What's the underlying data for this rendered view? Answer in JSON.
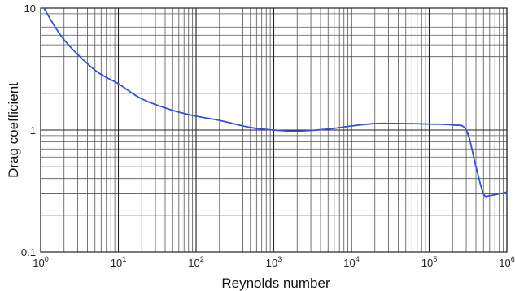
{
  "chart_data": {
    "type": "line",
    "title": "",
    "xlabel": "Reynolds number",
    "ylabel": "Drag coefficient",
    "x_scale": "log",
    "y_scale": "log",
    "xlim": [
      1,
      1000000
    ],
    "ylim": [
      0.1,
      10
    ],
    "grid": true,
    "legend": "none",
    "x_ticks": [
      {
        "base": "10",
        "exp": "0"
      },
      {
        "base": "10",
        "exp": "1"
      },
      {
        "base": "10",
        "exp": "2"
      },
      {
        "base": "10",
        "exp": "3"
      },
      {
        "base": "10",
        "exp": "4"
      },
      {
        "base": "10",
        "exp": "5"
      },
      {
        "base": "10",
        "exp": "6"
      }
    ],
    "y_ticks": [
      "0.1",
      "1",
      "10"
    ],
    "series": [
      {
        "color": "#3a4fd6",
        "x": [
          1.1,
          2,
          5,
          10,
          20,
          50,
          100,
          200,
          500,
          1000,
          2000,
          5000,
          10000,
          20000,
          50000,
          100000,
          200000,
          300000,
          400000,
          500000,
          600000,
          800000,
          1000000
        ],
        "y": [
          10,
          5.5,
          3.1,
          2.4,
          1.8,
          1.45,
          1.3,
          1.2,
          1.05,
          1.0,
          0.98,
          1.02,
          1.08,
          1.13,
          1.13,
          1.12,
          1.1,
          1.0,
          0.5,
          0.3,
          0.29,
          0.3,
          0.31
        ]
      }
    ]
  }
}
